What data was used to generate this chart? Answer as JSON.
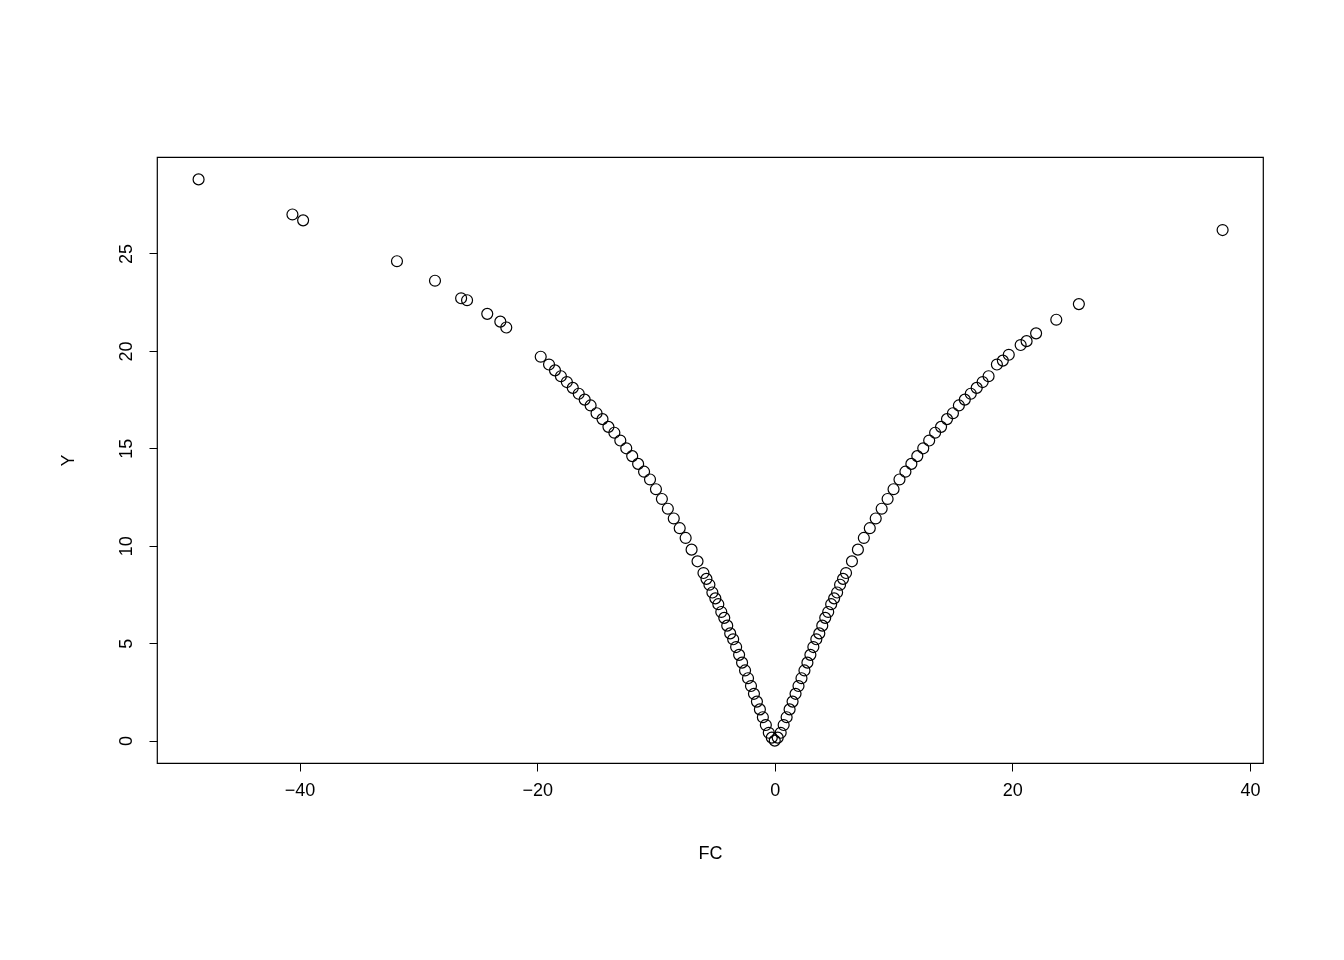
{
  "chart_data": {
    "type": "scatter",
    "xlabel": "FC",
    "ylabel": "Y",
    "xlim": [
      -52.0,
      41.1
    ],
    "ylim": [
      -1.15,
      29.95
    ],
    "xticks": [
      -40,
      -20,
      0,
      20,
      40
    ],
    "yticks": [
      0,
      5,
      10,
      15,
      20,
      25
    ],
    "grid": false,
    "marker": "circle",
    "series": [
      {
        "color": "#000000",
        "x": [
          -48.5,
          -40.6,
          -39.7,
          -31.8,
          -28.6,
          -26.4,
          -25.9,
          -24.2,
          -23.1,
          -22.6,
          -19.7,
          -19,
          -18.5,
          -18,
          -17.5,
          -17,
          -16.5,
          -16,
          -15.5,
          -15,
          -14.5,
          -14,
          -13.5,
          -13,
          -12.5,
          -12,
          -11.5,
          -11,
          -10.5,
          -10,
          -9.5,
          -9,
          -8.5,
          -8,
          -7.5,
          -7,
          -6.5,
          -6,
          -5.75,
          -5.5,
          -5.25,
          -5,
          -4.75,
          -4.5,
          -4.25,
          -4,
          -3.75,
          -3.5,
          -3.25,
          -3,
          -2.75,
          -2.5,
          -2.25,
          -2,
          -1.75,
          -1.5,
          -1.25,
          -1,
          -0.75,
          -0.5,
          -0.25,
          0,
          0.25,
          0.5,
          0.75,
          1,
          1.25,
          1.5,
          1.75,
          2,
          2.25,
          2.5,
          2.75,
          3,
          3.25,
          3.5,
          3.75,
          4,
          4.25,
          4.5,
          4.75,
          5,
          5.25,
          5.5,
          5.75,
          6,
          6.5,
          7,
          7.5,
          8,
          8.5,
          9,
          9.5,
          10,
          10.5,
          11,
          11.5,
          12,
          12.5,
          13,
          13.5,
          14,
          14.5,
          15,
          15.5,
          16,
          16.5,
          17,
          17.5,
          18,
          18.7,
          19.2,
          19.7,
          20.7,
          21.2,
          22.0,
          23.7,
          25.6,
          37.7
        ],
        "values": [
          28.8,
          27.0,
          26.7,
          24.6,
          23.6,
          22.7,
          22.6,
          21.9,
          21.5,
          21.2,
          19.7,
          19.3,
          19.0,
          18.7,
          18.4,
          18.1,
          17.8,
          17.5,
          17.2,
          16.8,
          16.5,
          16.1,
          15.8,
          15.4,
          15.0,
          14.6,
          14.2,
          13.8,
          13.4,
          12.9,
          12.4,
          11.9,
          11.4,
          10.9,
          10.4,
          9.8,
          9.2,
          8.6,
          8.3,
          8.0,
          7.6,
          7.3,
          7.0,
          6.6,
          6.3,
          5.9,
          5.5,
          5.2,
          4.8,
          4.4,
          4.0,
          3.6,
          3.2,
          2.8,
          2.4,
          2.0,
          1.6,
          1.2,
          0.8,
          0.4,
          0.15,
          0,
          0.15,
          0.4,
          0.8,
          1.2,
          1.6,
          2.0,
          2.4,
          2.8,
          3.2,
          3.6,
          4.0,
          4.4,
          4.8,
          5.2,
          5.5,
          5.9,
          6.3,
          6.6,
          7.0,
          7.3,
          7.6,
          8.0,
          8.3,
          8.6,
          9.2,
          9.8,
          10.4,
          10.9,
          11.4,
          11.9,
          12.4,
          12.9,
          13.4,
          13.8,
          14.2,
          14.6,
          15.0,
          15.4,
          15.8,
          16.1,
          16.5,
          16.8,
          17.2,
          17.5,
          17.8,
          18.1,
          18.4,
          18.7,
          19.3,
          19.5,
          19.8,
          20.3,
          20.5,
          20.9,
          21.6,
          22.4,
          26.2
        ]
      }
    ]
  }
}
